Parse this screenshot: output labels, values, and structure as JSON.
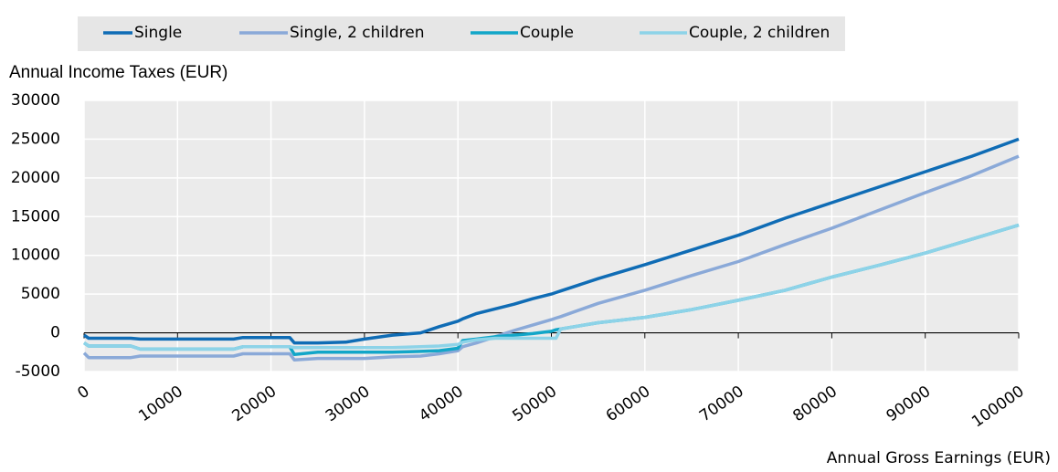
{
  "chart_data": {
    "type": "line",
    "y_label": "Annual Income Taxes (EUR)",
    "x_label": "Annual Gross Earnings (EUR)",
    "x": [
      0,
      500,
      1000,
      5000,
      6000,
      10000,
      16000,
      17000,
      21000,
      22000,
      22500,
      25000,
      28000,
      30000,
      33000,
      36000,
      38000,
      40000,
      40500,
      42000,
      44000,
      46000,
      48000,
      50000,
      50500,
      51000,
      55000,
      60000,
      65000,
      70000,
      75000,
      80000,
      85000,
      90000,
      95000,
      100000
    ],
    "series": [
      {
        "name": "Single",
        "color": "#0f6cb5",
        "values": [
          -300,
          -700,
          -700,
          -700,
          -800,
          -800,
          -800,
          -600,
          -600,
          -600,
          -1300,
          -1300,
          -1200,
          -800,
          -300,
          0,
          800,
          1500,
          1800,
          2500,
          3100,
          3700,
          4400,
          5000,
          5200,
          5400,
          7000,
          8800,
          10700,
          12600,
          14800,
          16800,
          18800,
          20800,
          22800,
          25000
        ]
      },
      {
        "name": "Single, 2 children",
        "color": "#8aa9d8",
        "values": [
          -2600,
          -3200,
          -3200,
          -3200,
          -3000,
          -3000,
          -3000,
          -2700,
          -2700,
          -2700,
          -3500,
          -3300,
          -3300,
          -3300,
          -3100,
          -3000,
          -2700,
          -2300,
          -1800,
          -1300,
          -500,
          300,
          1000,
          1700,
          1900,
          2100,
          3800,
          5500,
          7400,
          9200,
          11400,
          13500,
          15800,
          18100,
          20300,
          22800
        ]
      },
      {
        "name": "Couple",
        "color": "#12a6c8",
        "values": [
          -1300,
          -1700,
          -1700,
          -1700,
          -2100,
          -2100,
          -2100,
          -1800,
          -1800,
          -1800,
          -2800,
          -2500,
          -2500,
          -2500,
          -2500,
          -2400,
          -2300,
          -2000,
          -1000,
          -800,
          -500,
          -300,
          -100,
          200,
          400,
          500,
          1300,
          2000,
          3000,
          4200,
          5500,
          7200,
          8700,
          10300,
          12100,
          13900
        ]
      },
      {
        "name": "Couple, 2 children",
        "color": "#8dd3e8",
        "values": [
          -1300,
          -1700,
          -1700,
          -1700,
          -2100,
          -2100,
          -2100,
          -1800,
          -1800,
          -1800,
          -1900,
          -1900,
          -1900,
          -1900,
          -1900,
          -1800,
          -1700,
          -1500,
          -1200,
          -900,
          -700,
          -700,
          -700,
          -700,
          -700,
          500,
          1300,
          2000,
          3000,
          4200,
          5500,
          7200,
          8700,
          10300,
          12100,
          13900
        ]
      }
    ],
    "xlim": [
      0,
      100000
    ],
    "xticks": [
      0,
      10000,
      20000,
      30000,
      40000,
      50000,
      60000,
      70000,
      80000,
      90000,
      100000
    ],
    "ylim": [
      -5000,
      30000
    ],
    "yticks": [
      -5000,
      0,
      5000,
      10000,
      15000,
      20000,
      25000,
      30000
    ],
    "grid": true,
    "legend": "top"
  }
}
